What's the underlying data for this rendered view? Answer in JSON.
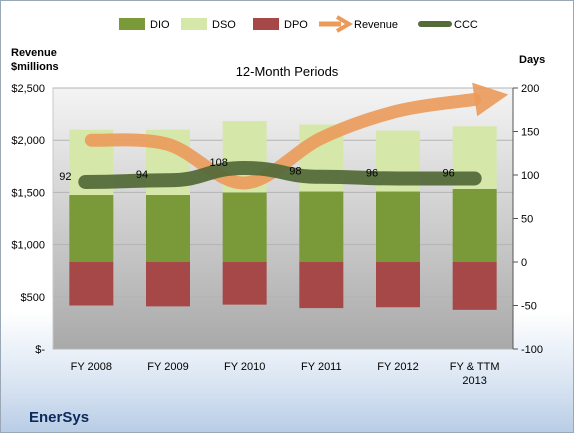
{
  "chart_data": {
    "type": "bar",
    "subtitle": "12-Month Periods",
    "company": "EnerSys",
    "y_left_title": [
      "Revenue",
      "$millions"
    ],
    "y_right_title": "Days",
    "y_left_ticks": [
      "$2,500",
      "$2,000",
      "$1,500",
      "$1,000",
      "$500",
      "$-"
    ],
    "y_left_lim": [
      0,
      2500
    ],
    "y_right_ticks": [
      "200",
      "150",
      "100",
      "50",
      "0",
      "-50",
      "-100"
    ],
    "y_right_lim": [
      -100,
      200
    ],
    "categories": [
      "FY 2008",
      "FY 2009",
      "FY 2010",
      "FY 2011",
      "FY 2012",
      "FY & TTM 2013"
    ],
    "legend": [
      {
        "name": "DIO",
        "color": "#7a9a3a",
        "kind": "box"
      },
      {
        "name": "DSO",
        "color": "#d5e8aa",
        "kind": "box"
      },
      {
        "name": "DPO",
        "color": "#a64848",
        "kind": "box"
      },
      {
        "name": "Revenue",
        "color": "#eb9a5a",
        "kind": "arrow"
      },
      {
        "name": "CCC",
        "color": "#556b3a",
        "kind": "line"
      }
    ],
    "series": [
      {
        "name": "DIO",
        "axis": "days",
        "values": [
          77,
          77,
          80,
          81,
          81,
          84
        ],
        "color": "#7a9a3a"
      },
      {
        "name": "DSO",
        "axis": "days",
        "values": [
          75,
          75,
          82,
          77,
          70,
          72
        ],
        "color": "#d5e8aa"
      },
      {
        "name": "DPO",
        "axis": "days",
        "values": [
          -50,
          -51,
          -49,
          -53,
          -52,
          -55
        ],
        "color": "#a64848"
      },
      {
        "name": "CCC",
        "axis": "days",
        "values": [
          92,
          94,
          108,
          98,
          96,
          96
        ],
        "color": "#556b3a"
      },
      {
        "name": "Revenue",
        "axis": "revenue",
        "values": [
          2000,
          1960,
          1590,
          2020,
          2280,
          2390
        ],
        "color": "#eb9a5a"
      }
    ],
    "ccc_labels": [
      "92",
      "94",
      "108",
      "98",
      "96",
      "96"
    ],
    "grid": true,
    "legend_position": "top"
  }
}
